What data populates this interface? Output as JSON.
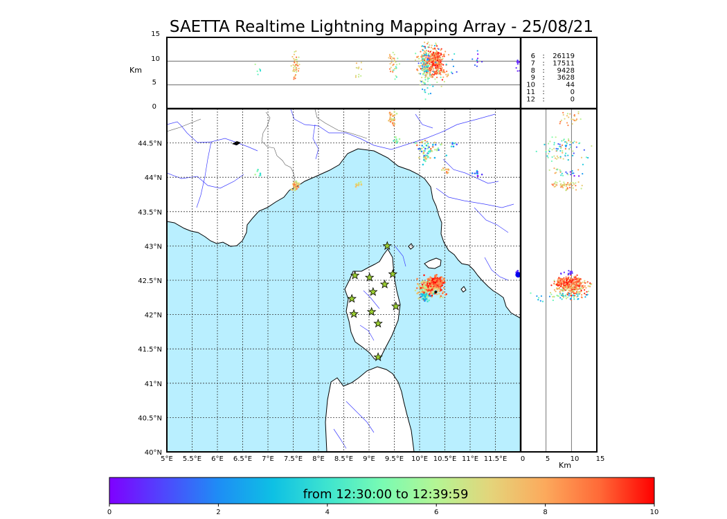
{
  "title": "SAETTA Realtime Lightning Mapping Array - 25/08/21",
  "colors": {
    "sea": "#b9efff",
    "land": "#ffffff",
    "river": "#3a3aff",
    "star_fill": "#9acd32",
    "counts_highlight": "#ff0000"
  },
  "top_panel": {
    "ylabel": "Km",
    "yticks": [
      "15",
      "10",
      "5",
      "0"
    ],
    "yrange": [
      0,
      15
    ],
    "reference_lines_km": [
      5,
      10
    ]
  },
  "side_panel": {
    "xlabel": "Km",
    "xticks": [
      "0",
      "5",
      "10",
      "15"
    ],
    "xrange": [
      0,
      15
    ],
    "reference_lines_km": [
      5,
      10
    ]
  },
  "counts": [
    {
      "stations": "6",
      "sep": ":",
      "value": "26119",
      "highlight": true
    },
    {
      "stations": "7",
      "sep": ":",
      "value": "17511",
      "highlight": false
    },
    {
      "stations": "8",
      "sep": ":",
      "value": "9428",
      "highlight": false
    },
    {
      "stations": "9",
      "sep": ":",
      "value": "3628",
      "highlight": false
    },
    {
      "stations": "10",
      "sep": ":",
      "value": "44",
      "highlight": false
    },
    {
      "stations": "11",
      "sep": ":",
      "value": "0",
      "highlight": false
    },
    {
      "stations": "12",
      "sep": ":",
      "value": "0",
      "highlight": false
    }
  ],
  "map": {
    "lon_range": [
      5,
      12
    ],
    "lat_range": [
      40,
      45
    ],
    "lon_ticks": [
      {
        "value": 5,
        "label": "5°E"
      },
      {
        "value": 5.5,
        "label": "5.5°E"
      },
      {
        "value": 6,
        "label": "6°E"
      },
      {
        "value": 6.5,
        "label": "6.5°E"
      },
      {
        "value": 7,
        "label": "7°E"
      },
      {
        "value": 7.5,
        "label": "7.5°E"
      },
      {
        "value": 8,
        "label": "8°E"
      },
      {
        "value": 8.5,
        "label": "8.5°E"
      },
      {
        "value": 9,
        "label": "9°E"
      },
      {
        "value": 9.5,
        "label": "9.5°E"
      },
      {
        "value": 10,
        "label": "10°E"
      },
      {
        "value": 10.5,
        "label": "10.5°E"
      },
      {
        "value": 11,
        "label": "11°E"
      },
      {
        "value": 11.5,
        "label": "11.5°E"
      }
    ],
    "lat_ticks": [
      {
        "value": 44.5,
        "label": "44.5°N"
      },
      {
        "value": 44,
        "label": "44°N"
      },
      {
        "value": 43.5,
        "label": "43.5°N"
      },
      {
        "value": 43,
        "label": "43°N"
      },
      {
        "value": 42.5,
        "label": "42.5°N"
      },
      {
        "value": 42,
        "label": "42°N"
      },
      {
        "value": 41.5,
        "label": "41.5°N"
      },
      {
        "value": 41,
        "label": "41°N"
      },
      {
        "value": 40.5,
        "label": "40.5°N"
      },
      {
        "value": 40,
        "label": "40°N"
      }
    ],
    "stations": [
      {
        "lon": 9.36,
        "lat": 43.0
      },
      {
        "lon": 8.72,
        "lat": 42.57
      },
      {
        "lon": 9.01,
        "lat": 42.54
      },
      {
        "lon": 9.47,
        "lat": 42.59
      },
      {
        "lon": 9.31,
        "lat": 42.44
      },
      {
        "lon": 9.08,
        "lat": 42.33
      },
      {
        "lon": 8.66,
        "lat": 42.23
      },
      {
        "lon": 9.53,
        "lat": 42.12
      },
      {
        "lon": 9.05,
        "lat": 42.04
      },
      {
        "lon": 8.7,
        "lat": 42.01
      },
      {
        "lon": 9.18,
        "lat": 41.87
      },
      {
        "lon": 9.18,
        "lat": 41.38
      }
    ]
  },
  "lightning_clusters": [
    {
      "lon": 10.22,
      "lat": 42.4,
      "slon": 0.12,
      "slat": 0.07,
      "n": 260,
      "tmin": 6,
      "tmax": 10,
      "alt": 10.0,
      "salt": 1.6
    },
    {
      "lon": 10.34,
      "lat": 42.48,
      "slon": 0.07,
      "slat": 0.04,
      "n": 140,
      "tmin": 8,
      "tmax": 10,
      "alt": 9.5,
      "salt": 1.4
    },
    {
      "lon": 10.1,
      "lat": 42.27,
      "slon": 0.06,
      "slat": 0.04,
      "n": 50,
      "tmin": 2,
      "tmax": 7,
      "alt": 8.0,
      "salt": 2.5
    },
    {
      "lon": 7.55,
      "lat": 43.88,
      "slon": 0.04,
      "slat": 0.03,
      "n": 45,
      "tmin": 6,
      "tmax": 9,
      "alt": 9.0,
      "salt": 1.5
    },
    {
      "lon": 8.8,
      "lat": 43.9,
      "slon": 0.03,
      "slat": 0.02,
      "n": 12,
      "tmin": 6,
      "tmax": 8,
      "alt": 8.5,
      "salt": 1.0
    },
    {
      "lon": 10.18,
      "lat": 44.42,
      "slon": 0.12,
      "slat": 0.06,
      "n": 50,
      "tmin": 1,
      "tmax": 9,
      "alt": 9.0,
      "salt": 2.5
    },
    {
      "lon": 9.45,
      "lat": 44.86,
      "slon": 0.04,
      "slat": 0.06,
      "n": 25,
      "tmin": 6,
      "tmax": 9,
      "alt": 9.5,
      "salt": 1.5
    },
    {
      "lon": 10.08,
      "lat": 44.28,
      "slon": 0.05,
      "slat": 0.04,
      "n": 18,
      "tmin": 3,
      "tmax": 8,
      "alt": 9.0,
      "salt": 2.0
    },
    {
      "lon": 11.17,
      "lat": 44.05,
      "slon": 0.05,
      "slat": 0.02,
      "n": 10,
      "tmin": 0,
      "tmax": 3,
      "alt": 10.5,
      "salt": 1.0
    },
    {
      "lon": 11.95,
      "lat": 42.6,
      "slon": 0.03,
      "slat": 0.02,
      "n": 14,
      "tmin": 0,
      "tmax": 1,
      "alt": 9.5,
      "salt": 0.8
    },
    {
      "lon": 10.52,
      "lat": 44.1,
      "slon": 0.05,
      "slat": 0.03,
      "n": 10,
      "tmin": 6,
      "tmax": 9,
      "alt": 7.0,
      "salt": 2.0
    },
    {
      "lon": 9.56,
      "lat": 44.53,
      "slon": 0.04,
      "slat": 0.03,
      "n": 10,
      "tmin": 4,
      "tmax": 7,
      "alt": 8.5,
      "salt": 1.5
    },
    {
      "lon": 6.8,
      "lat": 44.07,
      "slon": 0.03,
      "slat": 0.02,
      "n": 6,
      "tmin": 3,
      "tmax": 6,
      "alt": 9.0,
      "salt": 1.0
    },
    {
      "lon": 10.65,
      "lat": 44.48,
      "slon": 0.05,
      "slat": 0.03,
      "n": 6,
      "tmin": 1,
      "tmax": 5,
      "alt": 9.5,
      "salt": 1.5
    }
  ],
  "colorbar": {
    "label": "from 12:30:00 to 12:39:59",
    "ticks": [
      "0",
      "2",
      "4",
      "6",
      "8",
      "10"
    ],
    "range": [
      0,
      10
    ],
    "stops": [
      "#7f00ff",
      "#4f47fd",
      "#1e8df5",
      "#0ec0e4",
      "#3ee4cf",
      "#79fbb3",
      "#b4f594",
      "#e4d47a",
      "#fca95c",
      "#ff6937",
      "#ff0000"
    ]
  }
}
